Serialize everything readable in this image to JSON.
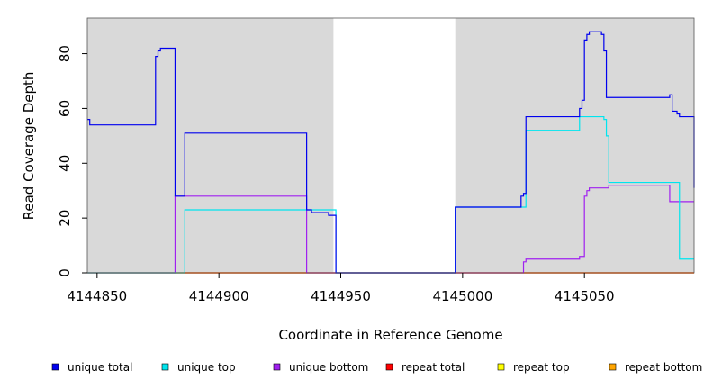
{
  "chart_data": {
    "type": "line",
    "title": "",
    "xlabel": "Coordinate in Reference Genome",
    "ylabel": "Read Coverage Depth",
    "xlim": [
      4144846,
      4145095
    ],
    "ylim": [
      0,
      93
    ],
    "x_ticks": [
      4144850,
      4144900,
      4144950,
      4145000,
      4145050
    ],
    "y_ticks": [
      0,
      20,
      40,
      60,
      80
    ],
    "x_tick_labels": [
      "4144850",
      "4144900",
      "4144950",
      "4145000",
      "4145050"
    ],
    "y_tick_labels": [
      "0",
      "20",
      "40",
      "60",
      "80"
    ],
    "shaded_regions": [
      [
        4144846,
        4144947
      ],
      [
        4144997,
        4145095
      ]
    ],
    "shade_color": "#d9d9d9",
    "grid": false,
    "legend_position": "bottom",
    "series": [
      {
        "name": "unique total",
        "color": "#0000ee",
        "step": true,
        "x": [
          4144846,
          4144847,
          4144874,
          4144875,
          4144876,
          4144878,
          4144882,
          4144886,
          4144936,
          4144937,
          4144938,
          4144945,
          4144948,
          4144997,
          4145024,
          4145025,
          4145026,
          4145048,
          4145049,
          4145050,
          4145051,
          4145052,
          4145053,
          4145055,
          4145057,
          4145058,
          4145059,
          4145085,
          4145086,
          4145088,
          4145089,
          4145095
        ],
        "values": [
          56,
          54,
          79,
          81,
          82,
          82,
          28,
          51,
          23,
          23,
          22,
          21,
          0,
          24,
          28,
          29,
          57,
          60,
          63,
          85,
          87,
          88,
          88,
          88,
          87,
          81,
          64,
          65,
          59,
          58,
          57,
          31
        ]
      },
      {
        "name": "unique top",
        "color": "#00e5ee",
        "step": true,
        "x": [
          4144846,
          4144886,
          4144936,
          4144948,
          4144997,
          4145025,
          4145026,
          4145048,
          4145057,
          4145058,
          4145059,
          4145060,
          4145088,
          4145089,
          4145095
        ],
        "values": [
          0,
          23,
          23,
          0,
          24,
          24,
          52,
          57,
          57,
          56,
          50,
          33,
          33,
          5,
          5
        ]
      },
      {
        "name": "unique bottom",
        "color": "#a020f0",
        "step": true,
        "x": [
          4144846,
          4144882,
          4144886,
          4144936,
          4145025,
          4145026,
          4145048,
          4145050,
          4145051,
          4145052,
          4145055,
          4145059,
          4145060,
          4145085,
          4145095
        ],
        "values": [
          0,
          28,
          28,
          0,
          4,
          5,
          6,
          28,
          30,
          31,
          31,
          31,
          32,
          26,
          26
        ]
      },
      {
        "name": "repeat total",
        "color": "#ff0000",
        "step": true,
        "x": [
          4144846,
          4145095
        ],
        "values": [
          0,
          0
        ]
      },
      {
        "name": "repeat top",
        "color": "#ffff00",
        "step": true,
        "x": [
          4144846,
          4145095
        ],
        "values": [
          0,
          0
        ]
      },
      {
        "name": "repeat bottom",
        "color": "#ffa500",
        "step": true,
        "x": [
          4144846,
          4145095
        ],
        "values": [
          0,
          0
        ]
      }
    ]
  }
}
